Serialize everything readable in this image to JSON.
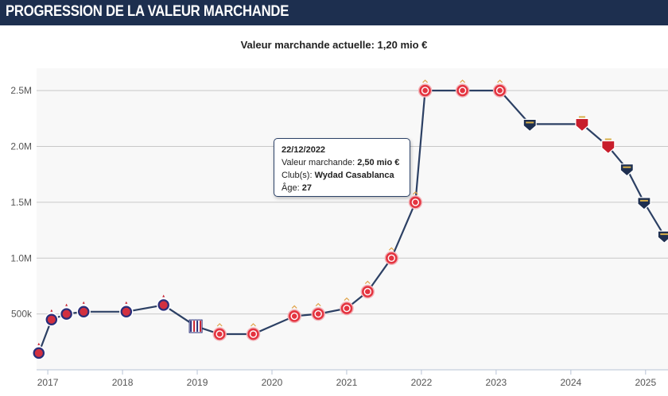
{
  "header": {
    "title": "PROGRESSION DE LA VALEUR MARCHANDE"
  },
  "subtitle": {
    "label": "Valeur marchande actuelle:",
    "value": "1,20 mio €"
  },
  "tooltip": {
    "date": "22/12/2022",
    "value_label": "Valeur marchande:",
    "value": "2,50 mio €",
    "club_label": "Club(s):",
    "club": "Wydad Casablanca",
    "age_label": "Âge:",
    "age": "27"
  },
  "colors": {
    "line": "#2c4064",
    "header_bg": "#1d2f4f",
    "plot_bg": "#f8f8f8",
    "grid": "#c8c8c8"
  },
  "chart_data": {
    "type": "line",
    "title": "",
    "xlabel": "",
    "ylabel": "",
    "ylim": [
      0,
      2700000
    ],
    "xlim": [
      2016.85,
      2025.3
    ],
    "y_ticks": [
      {
        "value": 500000,
        "label": "500k"
      },
      {
        "value": 1000000,
        "label": "1.0M"
      },
      {
        "value": 1500000,
        "label": "1.5M"
      },
      {
        "value": 2000000,
        "label": "2.0M"
      },
      {
        "value": 2500000,
        "label": "2.5M"
      }
    ],
    "x_ticks": [
      {
        "value": 2017,
        "label": "2017"
      },
      {
        "value": 2018,
        "label": "2018"
      },
      {
        "value": 2019,
        "label": "2019"
      },
      {
        "value": 2020,
        "label": "2020"
      },
      {
        "value": 2021,
        "label": "2021"
      },
      {
        "value": 2022,
        "label": "2022"
      },
      {
        "value": 2023,
        "label": "2023"
      },
      {
        "value": 2024,
        "label": "2024"
      },
      {
        "value": 2025,
        "label": "2025"
      }
    ],
    "grid": true,
    "legend": "none",
    "series": [
      {
        "points": [
          {
            "x": 2016.88,
            "y": 150000,
            "club": "club-a"
          },
          {
            "x": 2017.05,
            "y": 450000,
            "club": "club-a"
          },
          {
            "x": 2017.25,
            "y": 500000,
            "club": "club-a"
          },
          {
            "x": 2017.48,
            "y": 520000,
            "club": "club-a"
          },
          {
            "x": 2018.05,
            "y": 520000,
            "club": "club-a"
          },
          {
            "x": 2018.55,
            "y": 580000,
            "club": "club-a"
          },
          {
            "x": 2018.98,
            "y": 390000,
            "club": "club-b"
          },
          {
            "x": 2019.3,
            "y": 320000,
            "club": "wydad"
          },
          {
            "x": 2019.75,
            "y": 320000,
            "club": "wydad"
          },
          {
            "x": 2020.3,
            "y": 480000,
            "club": "wydad"
          },
          {
            "x": 2020.62,
            "y": 500000,
            "club": "wydad"
          },
          {
            "x": 2021.0,
            "y": 550000,
            "club": "wydad"
          },
          {
            "x": 2021.28,
            "y": 700000,
            "club": "wydad"
          },
          {
            "x": 2021.6,
            "y": 1000000,
            "club": "wydad"
          },
          {
            "x": 2021.92,
            "y": 1500000,
            "club": "wydad"
          },
          {
            "x": 2022.05,
            "y": 2500000,
            "club": "wydad"
          },
          {
            "x": 2022.55,
            "y": 2500000,
            "club": "wydad"
          },
          {
            "x": 2023.05,
            "y": 2500000,
            "club": "wydad"
          },
          {
            "x": 2023.45,
            "y": 2200000,
            "club": "club-c"
          },
          {
            "x": 2024.15,
            "y": 2200000,
            "club": "club-d"
          },
          {
            "x": 2024.5,
            "y": 2000000,
            "club": "club-d"
          },
          {
            "x": 2024.75,
            "y": 1800000,
            "club": "club-c"
          },
          {
            "x": 2024.98,
            "y": 1500000,
            "club": "club-c"
          },
          {
            "x": 2025.25,
            "y": 1200000,
            "club": "club-c"
          }
        ]
      }
    ]
  }
}
